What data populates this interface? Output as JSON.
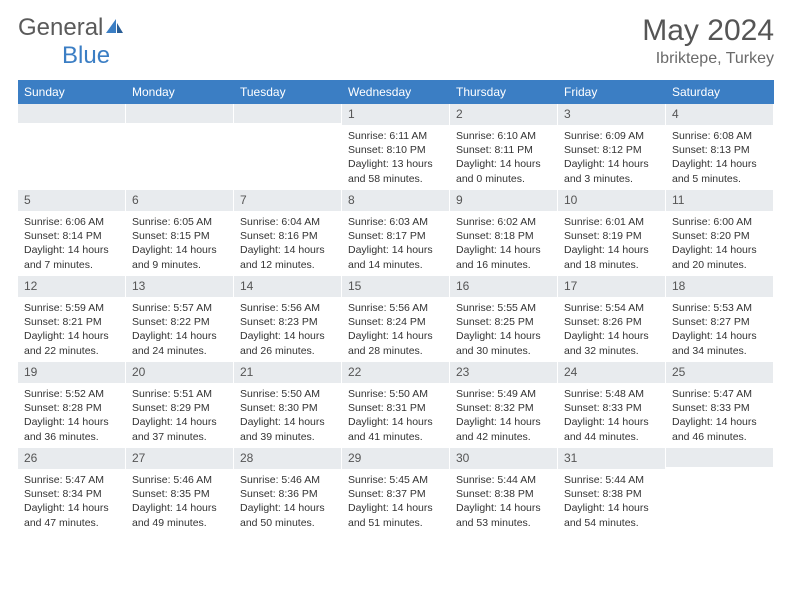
{
  "logo": {
    "text_general": "General",
    "text_blue": "Blue"
  },
  "header": {
    "title": "May 2024",
    "subtitle": "Ibriktepe, Turkey"
  },
  "colors": {
    "header_bar": "#3b7ec4",
    "day_header_bg": "#e8ebee",
    "text": "#333333",
    "logo_gray": "#5a5a5a",
    "logo_blue": "#3b7ec4"
  },
  "weekdays": [
    "Sunday",
    "Monday",
    "Tuesday",
    "Wednesday",
    "Thursday",
    "Friday",
    "Saturday"
  ],
  "weeks": [
    [
      null,
      null,
      null,
      {
        "num": "1",
        "sunrise": "Sunrise: 6:11 AM",
        "sunset": "Sunset: 8:10 PM",
        "daylight": "Daylight: 13 hours and 58 minutes."
      },
      {
        "num": "2",
        "sunrise": "Sunrise: 6:10 AM",
        "sunset": "Sunset: 8:11 PM",
        "daylight": "Daylight: 14 hours and 0 minutes."
      },
      {
        "num": "3",
        "sunrise": "Sunrise: 6:09 AM",
        "sunset": "Sunset: 8:12 PM",
        "daylight": "Daylight: 14 hours and 3 minutes."
      },
      {
        "num": "4",
        "sunrise": "Sunrise: 6:08 AM",
        "sunset": "Sunset: 8:13 PM",
        "daylight": "Daylight: 14 hours and 5 minutes."
      }
    ],
    [
      {
        "num": "5",
        "sunrise": "Sunrise: 6:06 AM",
        "sunset": "Sunset: 8:14 PM",
        "daylight": "Daylight: 14 hours and 7 minutes."
      },
      {
        "num": "6",
        "sunrise": "Sunrise: 6:05 AM",
        "sunset": "Sunset: 8:15 PM",
        "daylight": "Daylight: 14 hours and 9 minutes."
      },
      {
        "num": "7",
        "sunrise": "Sunrise: 6:04 AM",
        "sunset": "Sunset: 8:16 PM",
        "daylight": "Daylight: 14 hours and 12 minutes."
      },
      {
        "num": "8",
        "sunrise": "Sunrise: 6:03 AM",
        "sunset": "Sunset: 8:17 PM",
        "daylight": "Daylight: 14 hours and 14 minutes."
      },
      {
        "num": "9",
        "sunrise": "Sunrise: 6:02 AM",
        "sunset": "Sunset: 8:18 PM",
        "daylight": "Daylight: 14 hours and 16 minutes."
      },
      {
        "num": "10",
        "sunrise": "Sunrise: 6:01 AM",
        "sunset": "Sunset: 8:19 PM",
        "daylight": "Daylight: 14 hours and 18 minutes."
      },
      {
        "num": "11",
        "sunrise": "Sunrise: 6:00 AM",
        "sunset": "Sunset: 8:20 PM",
        "daylight": "Daylight: 14 hours and 20 minutes."
      }
    ],
    [
      {
        "num": "12",
        "sunrise": "Sunrise: 5:59 AM",
        "sunset": "Sunset: 8:21 PM",
        "daylight": "Daylight: 14 hours and 22 minutes."
      },
      {
        "num": "13",
        "sunrise": "Sunrise: 5:57 AM",
        "sunset": "Sunset: 8:22 PM",
        "daylight": "Daylight: 14 hours and 24 minutes."
      },
      {
        "num": "14",
        "sunrise": "Sunrise: 5:56 AM",
        "sunset": "Sunset: 8:23 PM",
        "daylight": "Daylight: 14 hours and 26 minutes."
      },
      {
        "num": "15",
        "sunrise": "Sunrise: 5:56 AM",
        "sunset": "Sunset: 8:24 PM",
        "daylight": "Daylight: 14 hours and 28 minutes."
      },
      {
        "num": "16",
        "sunrise": "Sunrise: 5:55 AM",
        "sunset": "Sunset: 8:25 PM",
        "daylight": "Daylight: 14 hours and 30 minutes."
      },
      {
        "num": "17",
        "sunrise": "Sunrise: 5:54 AM",
        "sunset": "Sunset: 8:26 PM",
        "daylight": "Daylight: 14 hours and 32 minutes."
      },
      {
        "num": "18",
        "sunrise": "Sunrise: 5:53 AM",
        "sunset": "Sunset: 8:27 PM",
        "daylight": "Daylight: 14 hours and 34 minutes."
      }
    ],
    [
      {
        "num": "19",
        "sunrise": "Sunrise: 5:52 AM",
        "sunset": "Sunset: 8:28 PM",
        "daylight": "Daylight: 14 hours and 36 minutes."
      },
      {
        "num": "20",
        "sunrise": "Sunrise: 5:51 AM",
        "sunset": "Sunset: 8:29 PM",
        "daylight": "Daylight: 14 hours and 37 minutes."
      },
      {
        "num": "21",
        "sunrise": "Sunrise: 5:50 AM",
        "sunset": "Sunset: 8:30 PM",
        "daylight": "Daylight: 14 hours and 39 minutes."
      },
      {
        "num": "22",
        "sunrise": "Sunrise: 5:50 AM",
        "sunset": "Sunset: 8:31 PM",
        "daylight": "Daylight: 14 hours and 41 minutes."
      },
      {
        "num": "23",
        "sunrise": "Sunrise: 5:49 AM",
        "sunset": "Sunset: 8:32 PM",
        "daylight": "Daylight: 14 hours and 42 minutes."
      },
      {
        "num": "24",
        "sunrise": "Sunrise: 5:48 AM",
        "sunset": "Sunset: 8:33 PM",
        "daylight": "Daylight: 14 hours and 44 minutes."
      },
      {
        "num": "25",
        "sunrise": "Sunrise: 5:47 AM",
        "sunset": "Sunset: 8:33 PM",
        "daylight": "Daylight: 14 hours and 46 minutes."
      }
    ],
    [
      {
        "num": "26",
        "sunrise": "Sunrise: 5:47 AM",
        "sunset": "Sunset: 8:34 PM",
        "daylight": "Daylight: 14 hours and 47 minutes."
      },
      {
        "num": "27",
        "sunrise": "Sunrise: 5:46 AM",
        "sunset": "Sunset: 8:35 PM",
        "daylight": "Daylight: 14 hours and 49 minutes."
      },
      {
        "num": "28",
        "sunrise": "Sunrise: 5:46 AM",
        "sunset": "Sunset: 8:36 PM",
        "daylight": "Daylight: 14 hours and 50 minutes."
      },
      {
        "num": "29",
        "sunrise": "Sunrise: 5:45 AM",
        "sunset": "Sunset: 8:37 PM",
        "daylight": "Daylight: 14 hours and 51 minutes."
      },
      {
        "num": "30",
        "sunrise": "Sunrise: 5:44 AM",
        "sunset": "Sunset: 8:38 PM",
        "daylight": "Daylight: 14 hours and 53 minutes."
      },
      {
        "num": "31",
        "sunrise": "Sunrise: 5:44 AM",
        "sunset": "Sunset: 8:38 PM",
        "daylight": "Daylight: 14 hours and 54 minutes."
      },
      null
    ]
  ]
}
